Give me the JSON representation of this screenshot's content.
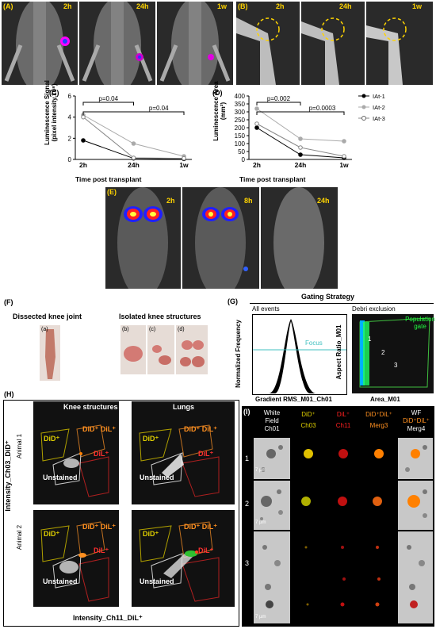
{
  "panelA": {
    "label": "(A)",
    "times": [
      "2h",
      "24h",
      "1w"
    ]
  },
  "panelB": {
    "label": "(B)",
    "times": [
      "2h",
      "24h",
      "1w"
    ]
  },
  "panelC": {
    "label": "(C)",
    "ylabel1": "Luminescence Signal",
    "ylabel2": "(pixel intensity,10⁸)",
    "xlabel": "Time post transplant",
    "stat1": "p=0.04",
    "stat2": "p=0.04"
  },
  "panelD": {
    "label": "(D)",
    "ylabel1": "Luminescence Area",
    "ylabel2": "(mm²)",
    "xlabel": "Time post transplant",
    "stat1": "p=0.002",
    "stat2": "p=0.0003"
  },
  "legend": [
    "IAt-1",
    "IAt-2",
    "IAt-3"
  ],
  "panelE": {
    "label": "(E)",
    "times": [
      "2h",
      "8h",
      "24h"
    ]
  },
  "panelF": {
    "label": "(F)",
    "title1": "Dissected knee joint",
    "title2": "Isolated knee structures",
    "sub": [
      "(a)",
      "(b)",
      "(c)",
      "(d)"
    ]
  },
  "panelG": {
    "label": "(G)",
    "title": "Gating Strategy",
    "left_title": "All events",
    "right_title": "Debri exclusion",
    "left_ylabel": "Normalized Frequency",
    "left_xlabel": "Gradient RMS_M01_Ch01",
    "focus": "Focus",
    "right_ylabel": "Aspect Ratio_M01",
    "right_xlabel": "Area_M01",
    "gate": "Population gate",
    "regions": [
      "1",
      "2",
      "3"
    ]
  },
  "panelH": {
    "label": "(H)",
    "col1": "Knee structures",
    "col2": "Lungs",
    "row1": "Animal 1",
    "row2": "Animal 2",
    "ylabel": "Intensity_Ch03_DiD⁺",
    "xlabel": "Intensity_Ch11_DiL⁺",
    "did": "DiD⁺",
    "didil": "DiD⁺ DiL⁺",
    "dil": "DiL⁺",
    "unstained": "Unstained"
  },
  "panelI": {
    "label": "(I)",
    "cols": [
      "White Field Ch01",
      "DiD⁺ Ch03",
      "DiL⁺ Ch11",
      "DiD⁺DiL⁺ Merg3",
      "WF DiD⁺DiL⁺ Merg4"
    ],
    "col_top": [
      "White",
      "DiD⁺",
      "DiL⁺",
      "DiD⁺DiL⁺",
      "WF"
    ],
    "col_mid": [
      "Field",
      "Ch03",
      "Ch11",
      "Merg3",
      "DiD⁺DiL⁺"
    ],
    "col_bot": [
      "Ch01",
      "",
      "",
      "",
      "Merg4"
    ],
    "rows": [
      "1",
      "2",
      "3"
    ],
    "scale": "7 µm"
  },
  "chart_data": [
    {
      "type": "line",
      "title": "",
      "xlabel": "Time post transplant",
      "ylabel": "Luminescence Signal (pixel intensity,10⁸)",
      "categories": [
        "2h",
        "24h",
        "1w"
      ],
      "ylim": [
        0,
        6
      ],
      "series": [
        {
          "name": "IAt-1",
          "values": [
            1.8,
            0.1,
            0.05
          ]
        },
        {
          "name": "IAt-2",
          "values": [
            4.2,
            1.5,
            0.3
          ]
        },
        {
          "name": "IAt-3",
          "values": [
            4.0,
            0.15,
            0.1
          ]
        }
      ]
    },
    {
      "type": "line",
      "title": "",
      "xlabel": "Time post transplant",
      "ylabel": "Luminescence Area (mm²)",
      "categories": [
        "2h",
        "24h",
        "1w"
      ],
      "ylim": [
        0,
        400
      ],
      "series": [
        {
          "name": "IAt-1",
          "values": [
            200,
            30,
            10
          ]
        },
        {
          "name": "IAt-2",
          "values": [
            320,
            130,
            115
          ]
        },
        {
          "name": "IAt-3",
          "values": [
            225,
            75,
            20
          ]
        }
      ]
    }
  ]
}
